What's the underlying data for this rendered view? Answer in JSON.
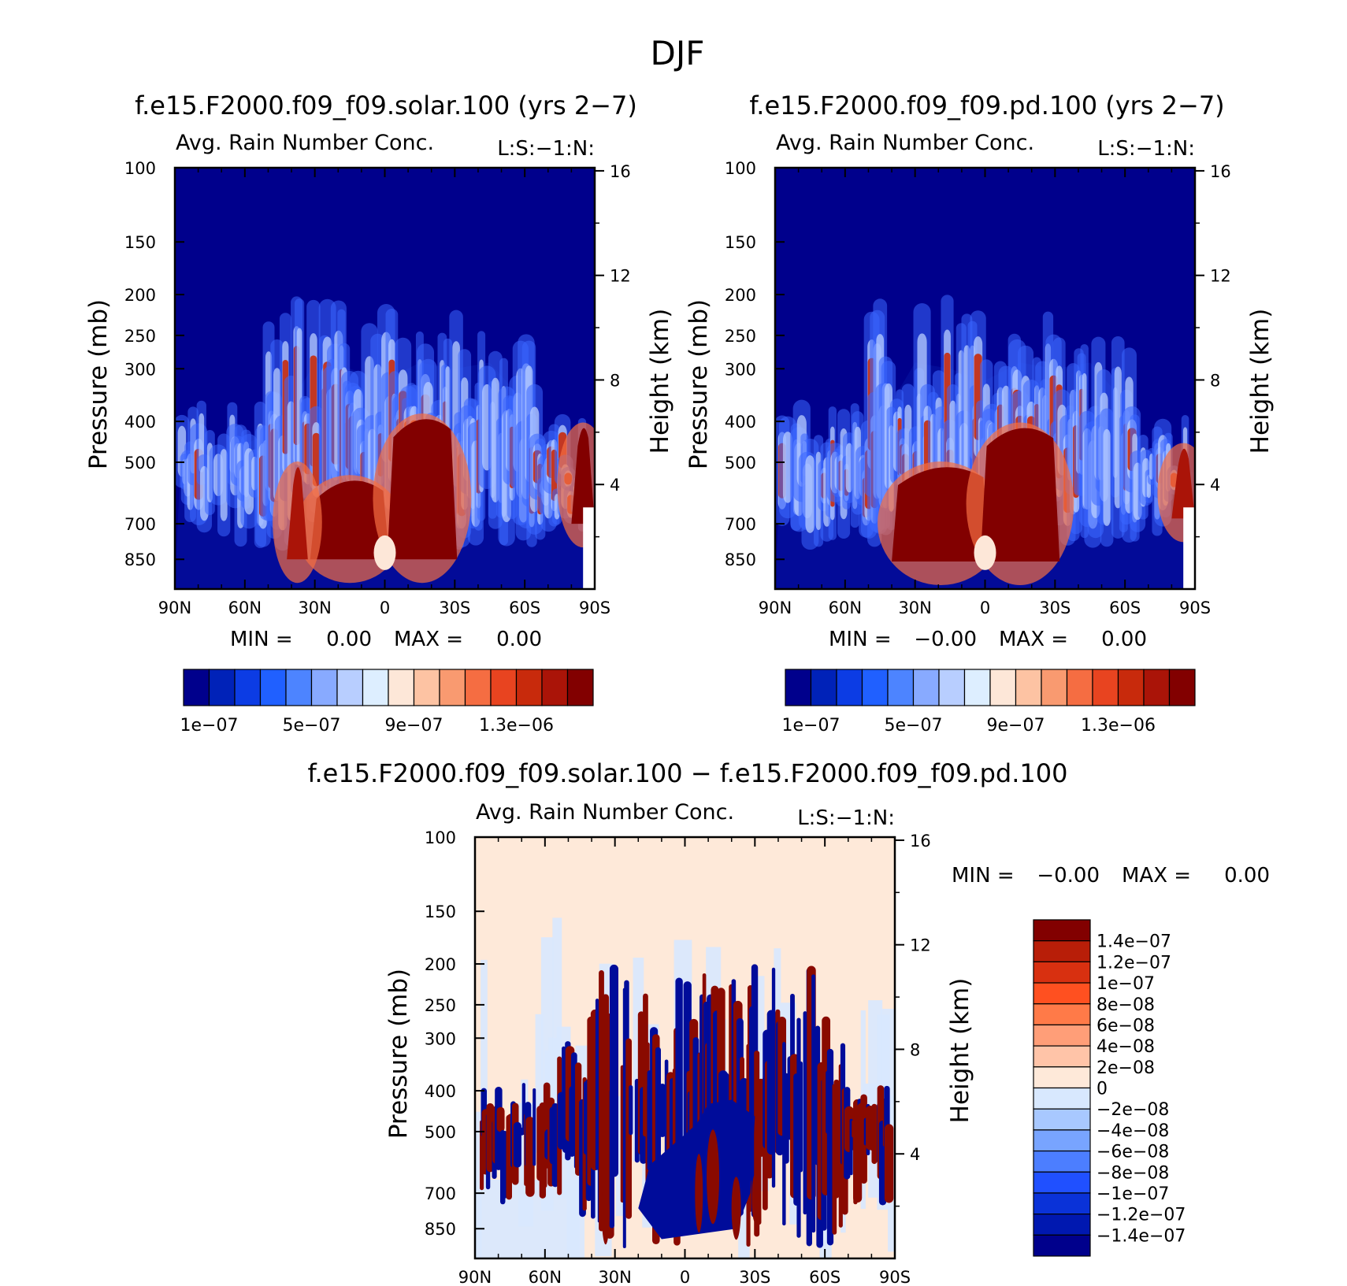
{
  "title": "DJF",
  "chart_data": [
    {
      "type": "heatmap",
      "case_title": "f.e15.F2000.f09_f09.solar.100 (yrs 2−7)",
      "subtitle": "Avg. Rain Number Conc.",
      "tag": "L:S:−1:N:",
      "ylabel": "Pressure (mb)",
      "ylabel_right": "Height (km)",
      "x_ticks": [
        "90N",
        "60N",
        "30N",
        "0",
        "30S",
        "60S",
        "90S"
      ],
      "y_ticks": [
        "100",
        "150",
        "200",
        "250",
        "300",
        "400",
        "500",
        "700",
        "850"
      ],
      "y_right_ticks": [
        "16",
        "12",
        "8",
        "4"
      ],
      "ylim": [
        100,
        1000
      ],
      "min_label": "MIN =",
      "min_value": "0.00",
      "max_label": "MAX =",
      "max_value": "0.00",
      "colorbar_ticks": [
        "1e−07",
        "5e−07",
        "9e−07",
        "1.3e−06"
      ],
      "colorbar_colors": [
        "#00008c",
        "#0022b8",
        "#0c3ce4",
        "#2060ff",
        "#4d84ff",
        "#88aaff",
        "#b8ceff",
        "#ddeeff",
        "#fde7d8",
        "#fdc3a3",
        "#f99a70",
        "#f56d42",
        "#e84420",
        "#c82a0c",
        "#aa1408",
        "#820000"
      ]
    },
    {
      "type": "heatmap",
      "case_title": "f.e15.F2000.f09_f09.pd.100 (yrs 2−7)",
      "subtitle": "Avg. Rain Number Conc.",
      "tag": "L:S:−1:N:",
      "ylabel": "Pressure (mb)",
      "ylabel_right": "Height (km)",
      "x_ticks": [
        "90N",
        "60N",
        "30N",
        "0",
        "30S",
        "60S",
        "90S"
      ],
      "y_ticks": [
        "100",
        "150",
        "200",
        "250",
        "300",
        "400",
        "500",
        "700",
        "850"
      ],
      "y_right_ticks": [
        "16",
        "12",
        "8",
        "4"
      ],
      "ylim": [
        100,
        1000
      ],
      "min_label": "MIN =",
      "min_value": "−0.00",
      "max_label": "MAX =",
      "max_value": "0.00",
      "colorbar_ticks": [
        "1e−07",
        "5e−07",
        "9e−07",
        "1.3e−06"
      ],
      "colorbar_colors": [
        "#00008c",
        "#0022b8",
        "#0c3ce4",
        "#2060ff",
        "#4d84ff",
        "#88aaff",
        "#b8ceff",
        "#ddeeff",
        "#fde7d8",
        "#fdc3a3",
        "#f99a70",
        "#f56d42",
        "#e84420",
        "#c82a0c",
        "#aa1408",
        "#820000"
      ]
    },
    {
      "type": "heatmap",
      "case_title": "f.e15.F2000.f09_f09.solar.100 − f.e15.F2000.f09_f09.pd.100",
      "subtitle": "Avg. Rain Number Conc.",
      "tag": "L:S:−1:N:",
      "ylabel": "Pressure (mb)",
      "ylabel_right": "Height (km)",
      "x_ticks": [
        "90N",
        "60N",
        "30N",
        "0",
        "30S",
        "60S",
        "90S"
      ],
      "y_ticks": [
        "100",
        "150",
        "200",
        "250",
        "300",
        "400",
        "500",
        "700",
        "850"
      ],
      "y_right_ticks": [
        "16",
        "12",
        "8",
        "4"
      ],
      "ylim": [
        100,
        1000
      ],
      "min_label": "MIN =",
      "min_value": "−0.00",
      "max_label": "MAX =",
      "max_value": "0.00",
      "colorbar_ticks": [
        "1.4e−07",
        "1.2e−07",
        "1e−07",
        "8e−08",
        "6e−08",
        "4e−08",
        "2e−08",
        "0",
        "−2e−08",
        "−4e−08",
        "−6e−08",
        "−8e−08",
        "−1e−07",
        "−1.2e−07",
        "−1.4e−07"
      ],
      "colorbar_colors": [
        "#820000",
        "#b81e08",
        "#d83010",
        "#ff5020",
        "#ff7a48",
        "#ff9e78",
        "#ffc4a8",
        "#fee9d9",
        "#d8e8fe",
        "#a8c8ff",
        "#78a4ff",
        "#4c7eff",
        "#2050ff",
        "#0a32d8",
        "#0018b0",
        "#00008c"
      ]
    }
  ]
}
